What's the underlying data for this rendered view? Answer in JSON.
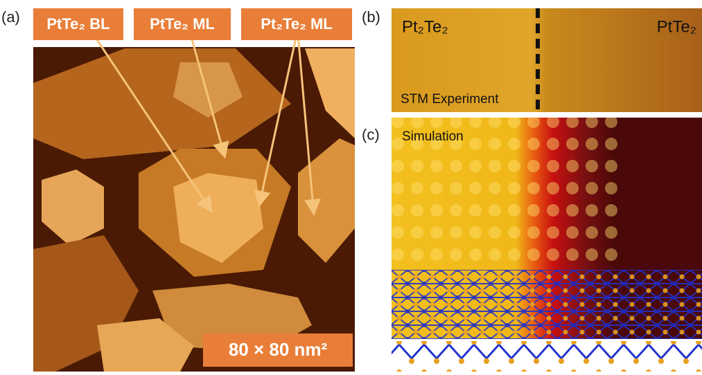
{
  "panel_a": {
    "label": "(a)",
    "tags": [
      "PtTe₂ BL",
      "PtTe₂ ML",
      "Pt₂Te₂ ML"
    ],
    "scale": "80 × 80 nm²"
  },
  "panel_b": {
    "label": "(b)",
    "left": "Pt₂Te₂",
    "right": "PtTe₂",
    "caption": "STM Experiment"
  },
  "panel_c": {
    "label": "(c)",
    "caption": "Simulation"
  }
}
